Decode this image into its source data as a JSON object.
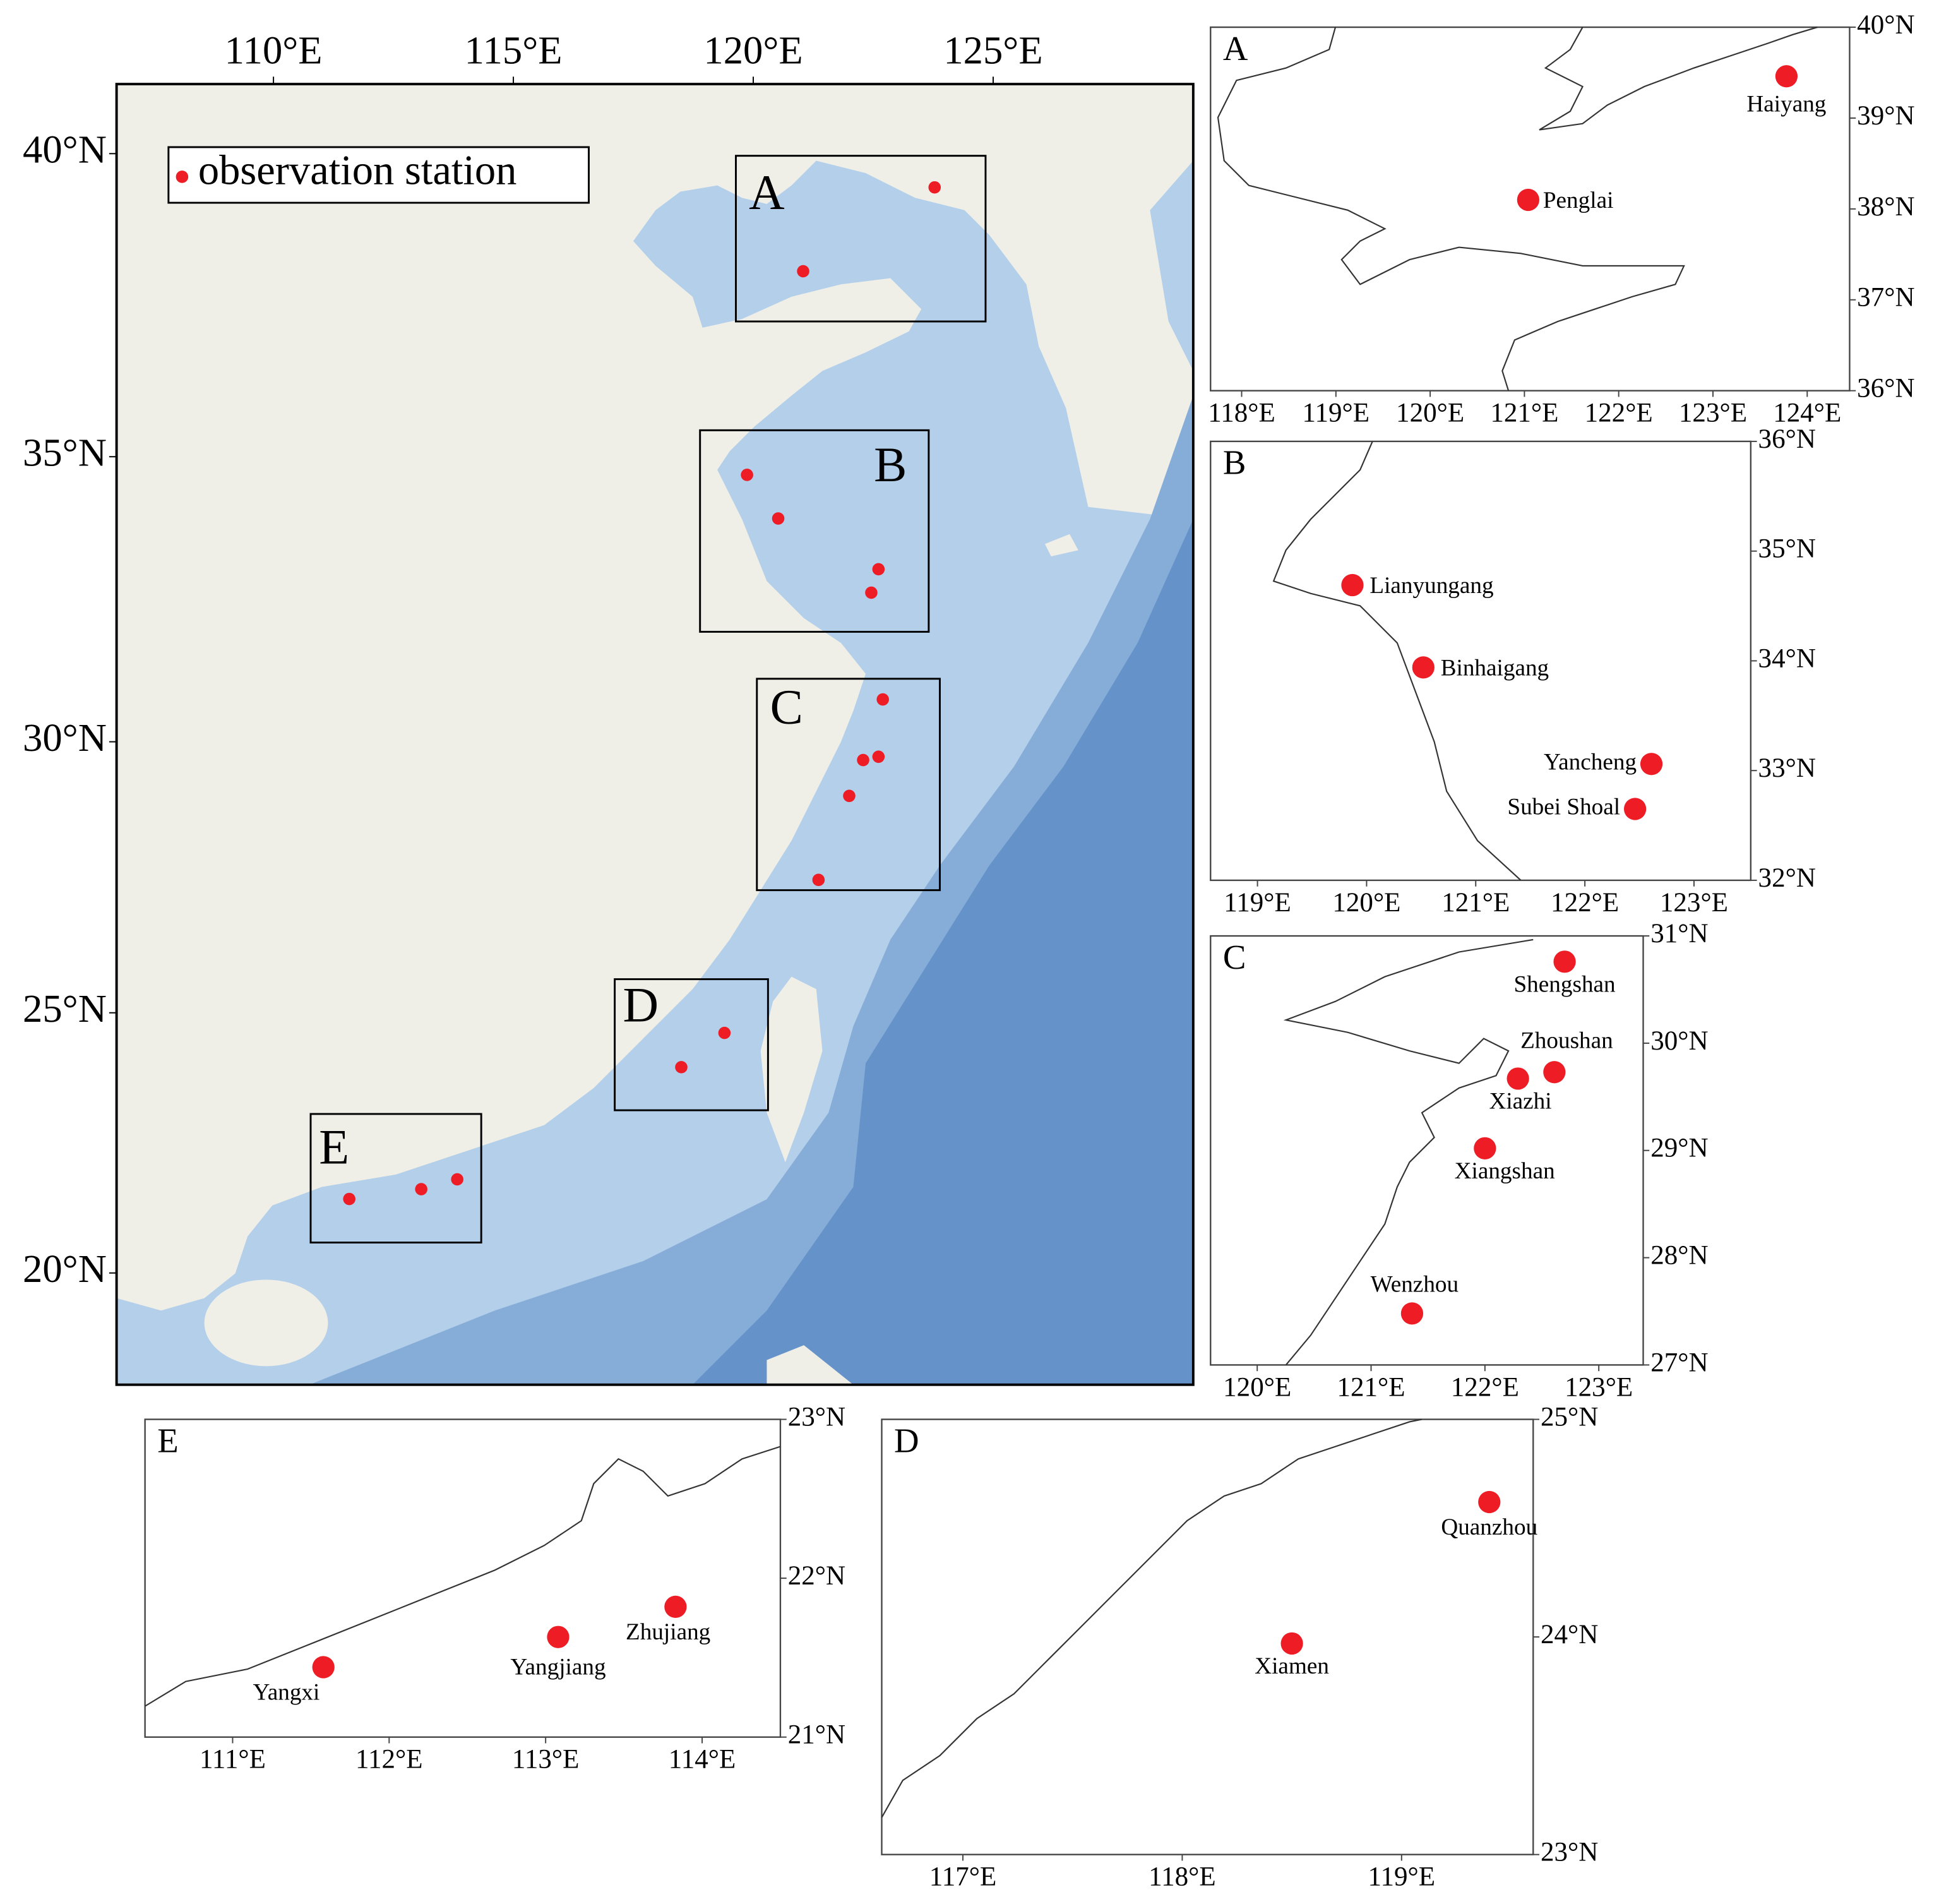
{
  "main_map": {
    "lon_range": [
      106.73,
      129.17
    ],
    "lat_range": [
      17.8,
      41.1
    ],
    "lon_ticks": [
      {
        "value": 110,
        "label": "110°E"
      },
      {
        "value": 115,
        "label": "115°E"
      },
      {
        "value": 120,
        "label": "120°E"
      },
      {
        "value": 125,
        "label": "125°E"
      }
    ],
    "lat_ticks": [
      {
        "value": 40,
        "label": "40°N"
      },
      {
        "value": 35,
        "label": "35°N"
      },
      {
        "value": 30,
        "label": "30°N"
      },
      {
        "value": 25,
        "label": "25°N"
      },
      {
        "value": 20,
        "label": "20°N"
      }
    ],
    "legend": "observation station",
    "station_color": "#ee1c25"
  },
  "insets": [
    {
      "label": "A",
      "lon_range": [
        117.67,
        124.45
      ],
      "lat_range": [
        36,
        40
      ],
      "lon_ticks": [
        {
          "value": 118,
          "label": "118°E"
        },
        {
          "value": 119,
          "label": "119°E"
        },
        {
          "value": 120,
          "label": "120°E"
        },
        {
          "value": 121,
          "label": "121°E"
        },
        {
          "value": 122,
          "label": "122°E"
        },
        {
          "value": 123,
          "label": "123°E"
        },
        {
          "value": 124,
          "label": "124°E"
        }
      ],
      "lat_ticks": [
        {
          "value": 40,
          "label": "40°N"
        },
        {
          "value": 39,
          "label": "39°N"
        },
        {
          "value": 38,
          "label": "38°N"
        },
        {
          "value": 37,
          "label": "37°N"
        },
        {
          "value": 36,
          "label": "36°N"
        }
      ],
      "stations": [
        {
          "name": "Haiyang",
          "lon": 123.78,
          "lat": 39.46
        },
        {
          "name": "Penglai",
          "lon": 121.04,
          "lat": 38.1
        }
      ]
    },
    {
      "label": "B",
      "lon_range": [
        118.57,
        123.52
      ],
      "lat_range": [
        32,
        36
      ],
      "lon_ticks": [
        {
          "value": 119,
          "label": "119°E"
        },
        {
          "value": 120,
          "label": "120°E"
        },
        {
          "value": 121,
          "label": "121°E"
        },
        {
          "value": 122,
          "label": "122°E"
        },
        {
          "value": 123,
          "label": "123°E"
        }
      ],
      "lat_ticks": [
        {
          "value": 36,
          "label": "36°N"
        },
        {
          "value": 35,
          "label": "35°N"
        },
        {
          "value": 34,
          "label": "34°N"
        },
        {
          "value": 33,
          "label": "33°N"
        },
        {
          "value": 32,
          "label": "32°N"
        }
      ],
      "stations": [
        {
          "name": "Lianyungang",
          "lon": 119.87,
          "lat": 34.69
        },
        {
          "name": "Binhaigang",
          "lon": 120.52,
          "lat": 33.94
        },
        {
          "name": "Yancheng",
          "lon": 122.61,
          "lat": 33.06
        },
        {
          "name": "Subei Shoal",
          "lon": 122.46,
          "lat": 32.65
        }
      ]
    },
    {
      "label": "C",
      "lon_range": [
        119.59,
        123.39
      ],
      "lat_range": [
        27,
        31
      ],
      "lon_ticks": [
        {
          "value": 120,
          "label": "120°E"
        },
        {
          "value": 121,
          "label": "121°E"
        },
        {
          "value": 122,
          "label": "122°E"
        },
        {
          "value": 123,
          "label": "123°E"
        }
      ],
      "lat_ticks": [
        {
          "value": 31,
          "label": "31°N"
        },
        {
          "value": 30,
          "label": "30°N"
        },
        {
          "value": 29,
          "label": "29°N"
        },
        {
          "value": 28,
          "label": "28°N"
        },
        {
          "value": 27,
          "label": "27°N"
        }
      ],
      "stations": [
        {
          "name": "Shengshan",
          "lon": 122.7,
          "lat": 30.76
        },
        {
          "name": "Zhoushan",
          "lon": 122.61,
          "lat": 29.73
        },
        {
          "name": "Xiazhi",
          "lon": 122.29,
          "lat": 29.67
        },
        {
          "name": "Xiangshan",
          "lon": 122.0,
          "lat": 29.02
        },
        {
          "name": "Wenzhou",
          "lon": 121.36,
          "lat": 27.48
        }
      ]
    },
    {
      "label": "D",
      "lon_range": [
        116.63,
        119.6
      ],
      "lat_range": [
        23,
        25
      ],
      "lon_ticks": [
        {
          "value": 117,
          "label": "117°E"
        },
        {
          "value": 118,
          "label": "118°E"
        },
        {
          "value": 119,
          "label": "119°E"
        }
      ],
      "lat_ticks": [
        {
          "value": 25,
          "label": "25°N"
        },
        {
          "value": 24,
          "label": "24°N"
        },
        {
          "value": 23,
          "label": "23°N"
        }
      ],
      "stations": [
        {
          "name": "Quanzhou",
          "lon": 119.4,
          "lat": 24.62
        },
        {
          "name": "Xiamen",
          "lon": 118.5,
          "lat": 23.97
        }
      ]
    },
    {
      "label": "E",
      "lon_range": [
        110.44,
        114.5
      ],
      "lat_range": [
        21,
        23
      ],
      "lon_ticks": [
        {
          "value": 111,
          "label": "111°E"
        },
        {
          "value": 112,
          "label": "112°E"
        },
        {
          "value": 113,
          "label": "113°E"
        },
        {
          "value": 114,
          "label": "114°E"
        }
      ],
      "lat_ticks": [
        {
          "value": 23,
          "label": "23°N"
        },
        {
          "value": 22,
          "label": "22°N"
        },
        {
          "value": 21,
          "label": "21°N"
        }
      ],
      "stations": [
        {
          "name": "Yangxi",
          "lon": 111.58,
          "lat": 21.44
        },
        {
          "name": "Yangjiang",
          "lon": 113.08,
          "lat": 21.63
        },
        {
          "name": "Zhujiang",
          "lon": 113.83,
          "lat": 21.82
        }
      ]
    }
  ]
}
